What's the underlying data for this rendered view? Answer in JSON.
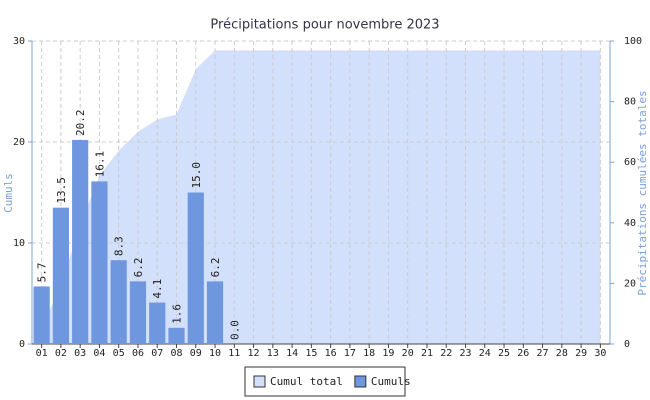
{
  "chart_data": {
    "type": "bar",
    "title": "Précipitations pour novembre 2023",
    "y_label": "Cumuls",
    "y2_label": "Précipitations cumulées totales",
    "categories": [
      "01",
      "02",
      "03",
      "04",
      "05",
      "06",
      "07",
      "08",
      "09",
      "10",
      "11",
      "12",
      "13",
      "14",
      "15",
      "16",
      "17",
      "18",
      "19",
      "20",
      "21",
      "22",
      "23",
      "24",
      "25",
      "26",
      "27",
      "28",
      "29",
      "30"
    ],
    "series": [
      {
        "name": "Cumul total",
        "type": "area",
        "axis": "y2",
        "color": "#d2e0fb",
        "values": [
          5.7,
          19.2,
          39.4,
          55.5,
          63.8,
          70.0,
          74.1,
          75.7,
          90.7,
          96.9,
          96.9,
          96.9,
          96.9,
          96.9,
          96.9,
          96.9,
          96.9,
          96.9,
          96.9,
          96.9,
          96.9,
          96.9,
          96.9,
          96.9,
          96.9,
          96.9,
          96.9,
          96.9,
          96.9,
          96.9
        ]
      },
      {
        "name": "Cumuls",
        "type": "bar",
        "axis": "y",
        "color": "#6f97e0",
        "values": [
          5.7,
          13.5,
          20.2,
          16.1,
          8.3,
          6.2,
          4.1,
          1.6,
          15.0,
          6.2,
          0.0,
          null,
          null,
          null,
          null,
          null,
          null,
          null,
          null,
          null,
          null,
          null,
          null,
          null,
          null,
          null,
          null,
          null,
          null,
          null
        ],
        "value_labels": [
          "5.7",
          "13.5",
          "20.2",
          "16.1",
          "8.3",
          "6.2",
          "4.1",
          "1.6",
          "15.0",
          "6.2",
          "0.0",
          null,
          null,
          null,
          null,
          null,
          null,
          null,
          null,
          null,
          null,
          null,
          null,
          null,
          null,
          null,
          null,
          null,
          null,
          null
        ]
      }
    ],
    "ylim": [
      0,
      30
    ],
    "yticks": [
      0,
      10,
      20,
      30
    ],
    "y2lim": [
      0,
      100
    ],
    "y2ticks": [
      0,
      20,
      40,
      60,
      80,
      100
    ],
    "grid": true,
    "legend": "bottom"
  }
}
